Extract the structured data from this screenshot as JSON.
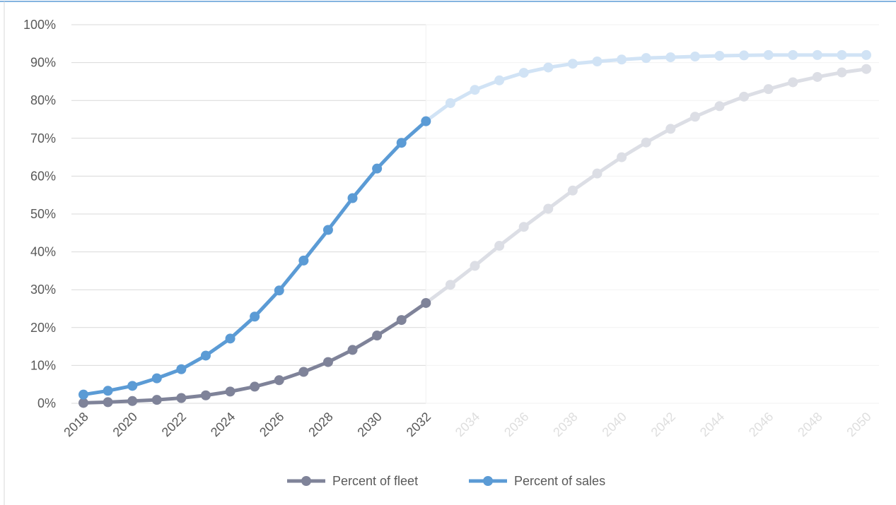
{
  "chart_data": {
    "type": "line",
    "x": [
      2018,
      2019,
      2020,
      2021,
      2022,
      2023,
      2024,
      2025,
      2026,
      2027,
      2028,
      2029,
      2030,
      2031,
      2032,
      2033,
      2034,
      2035,
      2036,
      2037,
      2038,
      2039,
      2040,
      2041,
      2042,
      2043,
      2044,
      2045,
      2046,
      2047,
      2048,
      2049,
      2050
    ],
    "x_tick_labels": [
      "2018",
      "2020",
      "2022",
      "2024",
      "2026",
      "2028",
      "2030",
      "2032",
      "2034",
      "2036",
      "2038",
      "2040",
      "2042",
      "2044",
      "2046",
      "2048",
      "2050"
    ],
    "y_tick_labels": [
      "0%",
      "10%",
      "20%",
      "30%",
      "40%",
      "50%",
      "60%",
      "70%",
      "80%",
      "90%",
      "100%"
    ],
    "ylim": [
      0,
      100
    ],
    "y_unit": "%",
    "highlight_through": 2032,
    "series": [
      {
        "name": "Percent of fleet",
        "color": "#7f8399",
        "faded_color": "#dcdee5",
        "values": [
          0.1,
          0.3,
          0.6,
          0.9,
          1.4,
          2.1,
          3.1,
          4.4,
          6.1,
          8.3,
          10.9,
          14.1,
          17.9,
          22.0,
          26.5,
          31.3,
          36.3,
          41.6,
          46.6,
          51.4,
          56.2,
          60.7,
          65.0,
          68.9,
          72.5,
          75.7,
          78.5,
          81.0,
          83.0,
          84.8,
          86.2,
          87.4,
          88.3
        ]
      },
      {
        "name": "Percent of sales",
        "color": "#5b9bd5",
        "faded_color": "#d1e3f5",
        "values": [
          2.3,
          3.3,
          4.6,
          6.6,
          9.0,
          12.6,
          17.1,
          22.9,
          29.8,
          37.7,
          45.8,
          54.2,
          62.0,
          68.8,
          74.5,
          79.3,
          82.8,
          85.3,
          87.3,
          88.7,
          89.7,
          90.3,
          90.8,
          91.2,
          91.4,
          91.6,
          91.8,
          91.9,
          92.0,
          92.0,
          92.0,
          92.0,
          92.0
        ]
      }
    ],
    "grid": true,
    "legend_position": "bottom",
    "title": ""
  },
  "legend": {
    "fleet_label": "Percent of fleet",
    "sales_label": "Percent of sales"
  }
}
